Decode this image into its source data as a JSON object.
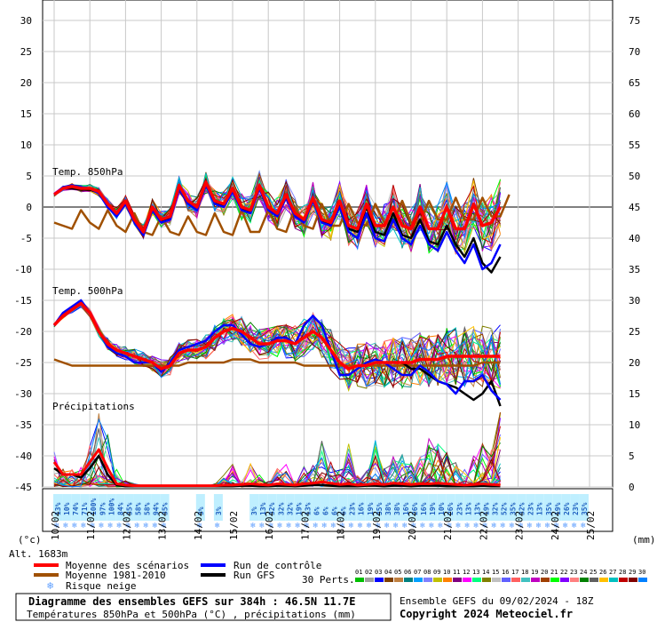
{
  "chart_data": {
    "type": "line",
    "title": "Diagramme des ensembles GEFS sur 384h : 46.5N 11.7E",
    "subtitle": "Températures 850hPa et 500hPa (°C) , précipitations (mm)",
    "run_info": "Ensemble GEFS du 09/02/2024 - 18Z",
    "copyright": "Copyright 2024 Meteociel.fr",
    "altitude": "Alt. 1683m",
    "left_unit": "(°c)",
    "right_unit": "(mm)",
    "left_ticks": [
      "30",
      "25",
      "20",
      "15",
      "10",
      "5",
      "0",
      "-5",
      "-10",
      "-15",
      "-20",
      "-25",
      "-30",
      "-35",
      "-40",
      "-45"
    ],
    "right_ticks": [
      "75",
      "70",
      "65",
      "60",
      "55",
      "50",
      "45",
      "40",
      "35",
      "30",
      "25",
      "20",
      "15",
      "10",
      "5",
      "0"
    ],
    "ylim_temp": [
      -45,
      30
    ],
    "ylim_precip": [
      0,
      75
    ],
    "x_dates": [
      "10/02",
      "11/02",
      "12/02",
      "13/02",
      "14/02",
      "15/02",
      "16/02",
      "17/02",
      "18/02",
      "19/02",
      "20/02",
      "21/02",
      "22/02",
      "23/02",
      "24/02",
      "25/02"
    ],
    "panel_labels": {
      "t850": "Temp. 850hPa",
      "t500": "Temp. 500hPa",
      "precip": "Précipitations"
    },
    "snow_risk_pct": [
      {
        "day": 0.125,
        "pct": "13%"
      },
      {
        "day": 0.375,
        "pct": "10%"
      },
      {
        "day": 0.625,
        "pct": "74%"
      },
      {
        "day": 0.875,
        "pct": "71%"
      },
      {
        "day": 1.125,
        "pct": "100%"
      },
      {
        "day": 1.375,
        "pct": "97%"
      },
      {
        "day": 1.625,
        "pct": "100%"
      },
      {
        "day": 1.875,
        "pct": "84%"
      },
      {
        "day": 2.125,
        "pct": "35%"
      },
      {
        "day": 2.375,
        "pct": "58%"
      },
      {
        "day": 2.625,
        "pct": "58%"
      },
      {
        "day": 2.875,
        "pct": "94%"
      },
      {
        "day": 3.125,
        "pct": "35%"
      },
      {
        "day": 4.125,
        "pct": "3%"
      },
      {
        "day": 4.625,
        "pct": "3%"
      },
      {
        "day": 5.625,
        "pct": "3%"
      },
      {
        "day": 5.875,
        "pct": "13%"
      },
      {
        "day": 6.125,
        "pct": "32%"
      },
      {
        "day": 6.375,
        "pct": "32%"
      },
      {
        "day": 6.625,
        "pct": "32%"
      },
      {
        "day": 6.875,
        "pct": "19%"
      },
      {
        "day": 7.125,
        "pct": "13%"
      },
      {
        "day": 7.375,
        "pct": "6%"
      },
      {
        "day": 7.625,
        "pct": "6%"
      },
      {
        "day": 7.875,
        "pct": "6%"
      },
      {
        "day": 8.125,
        "pct": "6%"
      },
      {
        "day": 8.375,
        "pct": "23%"
      },
      {
        "day": 8.625,
        "pct": "16%"
      },
      {
        "day": 8.875,
        "pct": "19%"
      },
      {
        "day": 9.125,
        "pct": "35%"
      },
      {
        "day": 9.375,
        "pct": "38%"
      },
      {
        "day": 9.625,
        "pct": "38%"
      },
      {
        "day": 9.875,
        "pct": "16%"
      },
      {
        "day": 10.125,
        "pct": "26%"
      },
      {
        "day": 10.375,
        "pct": "16%"
      },
      {
        "day": 10.625,
        "pct": "19%"
      },
      {
        "day": 10.875,
        "pct": "10%"
      },
      {
        "day": 11.125,
        "pct": "26%"
      },
      {
        "day": 11.375,
        "pct": "23%"
      },
      {
        "day": 11.625,
        "pct": "13%"
      },
      {
        "day": 11.875,
        "pct": "13%"
      },
      {
        "day": 12.125,
        "pct": "19%"
      },
      {
        "day": 12.375,
        "pct": "32%"
      },
      {
        "day": 12.625,
        "pct": "52%"
      },
      {
        "day": 12.875,
        "pct": "35%"
      },
      {
        "day": 13.125,
        "pct": "32%"
      },
      {
        "day": 13.375,
        "pct": "23%"
      },
      {
        "day": 13.625,
        "pct": "13%"
      },
      {
        "day": 13.875,
        "pct": "35%"
      },
      {
        "day": 14.125,
        "pct": "19%"
      },
      {
        "day": 14.375,
        "pct": "26%"
      },
      {
        "day": 14.625,
        "pct": "23%"
      },
      {
        "day": 14.875,
        "pct": "35%"
      }
    ],
    "legend": {
      "mean": "Moyenne des scénarios",
      "clim": "Moyenne 1981-2010",
      "snow": "Risque neige",
      "control": "Run de contrôle",
      "gfs": "Run GFS",
      "perts": "30 Perts."
    },
    "pert_numbers": [
      "01",
      "02",
      "03",
      "04",
      "05",
      "06",
      "07",
      "08",
      "09",
      "10",
      "11",
      "12",
      "13",
      "14",
      "15",
      "16",
      "17",
      "18",
      "19",
      "20",
      "21",
      "22",
      "23",
      "24",
      "25",
      "26",
      "27",
      "28",
      "29",
      "30"
    ],
    "pert_colors": [
      "#00c000",
      "#a0a0a0",
      "#0000ff",
      "#804000",
      "#c08040",
      "#008080",
      "#00a0ff",
      "#8080ff",
      "#c0c000",
      "#ff8000",
      "#800080",
      "#ff00ff",
      "#00ff80",
      "#808000",
      "#c0c0c0",
      "#6060ff",
      "#ff6060",
      "#40c0c0",
      "#c000c0",
      "#a04000",
      "#00ff00",
      "#8000ff",
      "#ff8080",
      "#008000",
      "#606060",
      "#ffc000",
      "#00c0c0",
      "#c00000",
      "#800000",
      "#0080ff"
    ],
    "series_colors": {
      "mean": "#ff0000",
      "clim": "#a05000",
      "control": "#0000ff",
      "gfs": "#000000",
      "snow": "#60a0ff"
    },
    "days": [
      0,
      0.25,
      0.5,
      0.75,
      1,
      1.25,
      1.5,
      1.75,
      2,
      2.25,
      2.5,
      2.75,
      3,
      3.25,
      3.5,
      3.75,
      4,
      4.25,
      4.5,
      4.75,
      5,
      5.25,
      5.5,
      5.75,
      6,
      6.25,
      6.5,
      6.75,
      7,
      7.25,
      7.5,
      7.75,
      8,
      8.25,
      8.5,
      8.75,
      9,
      9.25,
      9.5,
      9.75,
      10,
      10.25,
      10.5,
      10.75,
      11,
      11.25,
      11.5,
      11.75,
      12,
      12.25,
      12.5,
      12.75,
      13,
      13.25,
      13.5,
      13.75,
      14,
      14.25,
      14.5,
      14.75,
      15,
      15.25,
      15.5,
      15.75
    ],
    "t850": {
      "mean": [
        2,
        3,
        3.3,
        3,
        3,
        2.5,
        0.5,
        -1,
        1,
        -2,
        -4,
        0,
        -2,
        -1.5,
        3.5,
        1,
        0,
        4,
        1,
        0.5,
        3,
        0,
        -0.5,
        3.5,
        0,
        -1,
        2,
        -1,
        -2,
        1.5,
        -2,
        -2.5,
        1,
        -3,
        -3.5,
        0.5,
        -3,
        -3,
        0,
        -3,
        -3.5,
        0,
        -3.5,
        -3.5,
        0,
        -3.5,
        -3.5,
        0.5,
        -3,
        -2.5,
        0
      ],
      "control": [
        2,
        3.2,
        3.5,
        3.2,
        3,
        2.2,
        0,
        -1.5,
        0.5,
        -2.5,
        -4.5,
        -0.5,
        -2.5,
        -2,
        3,
        0.5,
        -0.5,
        3.5,
        0.5,
        0,
        2.5,
        -0.5,
        -1,
        3,
        -0.5,
        -1.5,
        1.5,
        -1.5,
        -2.5,
        1,
        -2.5,
        -3,
        0,
        -4,
        -5,
        -1,
        -5,
        -5.5,
        -2,
        -5,
        -6,
        -3,
        -6,
        -7,
        -4,
        -7,
        -9,
        -6,
        -10,
        -9,
        -6
      ],
      "gfs": [
        2,
        3,
        3,
        2.8,
        2.8,
        2.3,
        0.2,
        -1.2,
        0.8,
        -2.3,
        -4.2,
        -0.3,
        -2.3,
        -1.8,
        3.2,
        0.8,
        -0.2,
        3.8,
        0.8,
        0.3,
        2.8,
        -0.2,
        -0.8,
        3.2,
        -0.2,
        -1.2,
        1.8,
        -1.2,
        -2.2,
        1.2,
        -2.2,
        -2.8,
        0.5,
        -3.5,
        -4,
        0,
        -4,
        -4.5,
        -1,
        -4.5,
        -5,
        -2,
        -5.5,
        -6,
        -3,
        -6,
        -8,
        -5,
        -9,
        -10.5,
        -8
      ],
      "clim": [
        -2.5,
        -3,
        -3.5,
        -0.5,
        -2.5,
        -3.5,
        -0.5,
        -3,
        -4,
        -1,
        -4,
        -4.5,
        -1.5,
        -4,
        -4.5,
        -1.5,
        -4,
        -4.5,
        -1,
        -4,
        -4.5,
        -0.5,
        -4,
        -4,
        -0.5,
        -3.5,
        -4,
        0,
        -3,
        -3.5,
        0.5,
        -3,
        -3,
        0.5,
        -2.5,
        -3,
        0.5,
        -2.5,
        -2.5,
        1,
        -2.5,
        -2.5,
        1,
        -2,
        -2,
        1.5,
        -2,
        -2,
        1.5,
        -1.5,
        -1.5,
        2
      ],
      "spread": 0.6
    },
    "t500": {
      "mean": [
        -19,
        -17.5,
        -16.5,
        -15.5,
        -17,
        -20,
        -22,
        -23,
        -23.5,
        -24,
        -24.5,
        -25,
        -26,
        -25.5,
        -23.5,
        -23,
        -23,
        -22.5,
        -21,
        -20,
        -19.5,
        -20,
        -21,
        -22,
        -22,
        -21.5,
        -21.5,
        -22,
        -21,
        -20,
        -21,
        -23,
        -25,
        -26,
        -25.5,
        -25.5,
        -25,
        -25,
        -25,
        -25,
        -25,
        -24.5,
        -24.5,
        -24.5,
        -24,
        -24,
        -24,
        -24,
        -24,
        -24,
        -24
      ],
      "control": [
        -19,
        -17,
        -16,
        -15,
        -17,
        -20,
        -22.5,
        -23.5,
        -24,
        -25,
        -25,
        -25,
        -26.5,
        -25,
        -23,
        -22.5,
        -22,
        -21.5,
        -20,
        -19,
        -19,
        -20.5,
        -22,
        -22.5,
        -22,
        -21,
        -21,
        -22,
        -19,
        -17.5,
        -19,
        -23,
        -27,
        -27,
        -26,
        -25,
        -24.5,
        -25,
        -26,
        -27,
        -27,
        -25.5,
        -26.5,
        -28,
        -28.5,
        -30,
        -28,
        -28,
        -27,
        -29.5,
        -31
      ],
      "gfs": [
        -19,
        -17.5,
        -16.5,
        -15.5,
        -17,
        -20,
        -22,
        -23,
        -23.5,
        -24,
        -24.5,
        -25,
        -26,
        -25.5,
        -23.5,
        -23,
        -23,
        -22.5,
        -21,
        -20,
        -19.5,
        -20,
        -21,
        -22,
        -22,
        -21.5,
        -21.5,
        -22,
        -21,
        -20,
        -21,
        -23,
        -25,
        -26,
        -25.5,
        -25.5,
        -25,
        -25,
        -25,
        -25,
        -26,
        -26,
        -27,
        -28,
        -28.5,
        -29,
        -30,
        -31,
        -30,
        -28,
        -32
      ],
      "clim": [
        -24.5,
        -25,
        -25.5,
        -25.5,
        -25.5,
        -25.5,
        -25.5,
        -25.5,
        -25.5,
        -25.5,
        -25.5,
        -25.5,
        -25.5,
        -25.5,
        -25.5,
        -25,
        -25,
        -25,
        -25,
        -25,
        -24.5,
        -24.5,
        -24.5,
        -25,
        -25,
        -25,
        -25,
        -25,
        -25.5,
        -25.5,
        -25.5,
        -25.5,
        -25.5,
        -25.5,
        -25.5,
        -25.5,
        -25.5,
        -25.5,
        -25.5,
        -25.5,
        -25.5,
        -25.5,
        -25.5,
        -25.5,
        -25.5,
        -25.5,
        -25.5,
        -25.5,
        -25,
        -25,
        -25
      ]
    },
    "precip": {
      "mean": [
        4,
        2,
        2,
        2,
        4,
        6,
        3,
        0.5,
        0.3,
        0.2,
        0.2,
        0.2,
        0.2,
        0.2,
        0.2,
        0.2,
        0.2,
        0.2,
        0.2,
        0.3,
        0.3,
        0.4,
        0.5,
        0.4,
        0.3,
        0.5,
        0.4,
        0.3,
        0.5,
        0.6,
        0.8,
        0.6,
        0.4,
        0.5,
        0.3,
        0.4,
        0.5,
        0.4,
        0.6,
        0.5,
        0.4,
        0.5,
        0.5,
        0.6,
        0.5,
        0.4,
        0.3,
        0.4,
        0.5,
        0.4,
        0.3
      ],
      "gfs": [
        3,
        2,
        2,
        1.5,
        3,
        5,
        2,
        0.3,
        0.1,
        0.1,
        0.1,
        0.1,
        0.1,
        0.1,
        0.1,
        0.1,
        0.1,
        0.1,
        0.1,
        0.1,
        0.1,
        0.2,
        0.2,
        0.1,
        0.1,
        0.2,
        0.2,
        0.1,
        0.2,
        0.3,
        0.3,
        0.2,
        0.1,
        0.1,
        0.1,
        0.2,
        0.2,
        0.1,
        0.2,
        0.2,
        0.1,
        0.2,
        0.2,
        0.2,
        0.1,
        0.1,
        0.1,
        0.1,
        0.2,
        0.1,
        0.1
      ],
      "max": [
        6,
        3,
        3,
        4,
        8,
        13,
        9,
        3,
        1,
        0.5,
        0.2,
        0.2,
        0.2,
        0.2,
        0.2,
        0.2,
        0.3,
        0.3,
        0.5,
        2,
        5,
        1,
        4,
        2,
        1,
        3,
        4,
        1,
        6,
        4,
        9,
        4,
        3,
        7,
        2,
        3,
        8,
        3,
        5,
        6,
        4,
        5,
        9,
        7,
        6,
        4,
        3,
        5,
        8,
        6,
        12
      ]
    }
  }
}
